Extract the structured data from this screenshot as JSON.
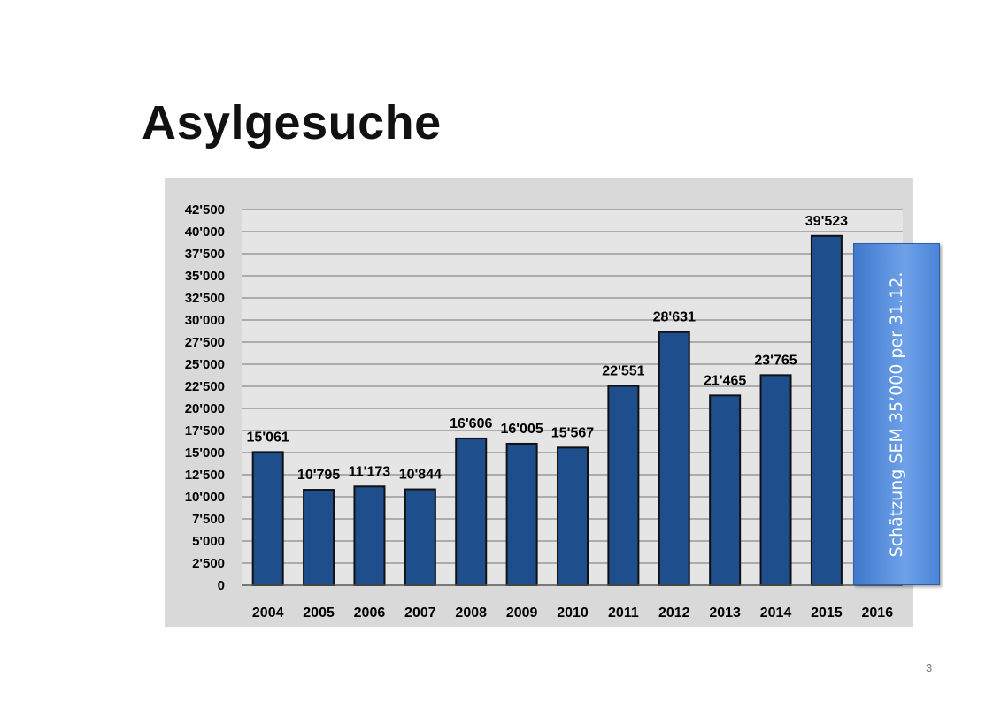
{
  "slide": {
    "title": "Asylgesuche",
    "page_number": "3"
  },
  "estimate_box": {
    "text": "Schätzung SEM  35’000 per 31.12.",
    "category": "2016",
    "value": 35000
  },
  "chart_data": {
    "type": "bar",
    "title": "",
    "xlabel": "",
    "ylabel": "",
    "categories": [
      "2004",
      "2005",
      "2006",
      "2007",
      "2008",
      "2009",
      "2010",
      "2011",
      "2012",
      "2013",
      "2014",
      "2015",
      "2016"
    ],
    "values": [
      15061,
      10795,
      11173,
      10844,
      16606,
      16005,
      15567,
      22551,
      28631,
      21465,
      23765,
      39523,
      null
    ],
    "data_labels": [
      "15'061",
      "10'795",
      "11'173",
      "10'844",
      "16'606",
      "16'005",
      "15'567",
      "22'551",
      "28'631",
      "21'465",
      "23'765",
      "39'523",
      ""
    ],
    "ylim": [
      0,
      42500
    ],
    "y_ticks": [
      0,
      2500,
      5000,
      7500,
      10000,
      12500,
      15000,
      17500,
      20000,
      22500,
      25000,
      27500,
      30000,
      32500,
      35000,
      37500,
      40000,
      42500
    ],
    "y_tick_labels": [
      "0",
      "2'500",
      "5'000",
      "7'500",
      "10'000",
      "12'500",
      "15'000",
      "17'500",
      "20'000",
      "22'500",
      "25'000",
      "27'500",
      "30'000",
      "32'500",
      "35'000",
      "37'500",
      "40'000",
      "42'500"
    ],
    "grid": true,
    "legend": "none",
    "colors": {
      "bar": "#1f4e8c",
      "bar_edge": "#111111",
      "panel": "#d9d9d9",
      "plot": "#e5e5e5",
      "grid": "#9a9a9a"
    }
  }
}
